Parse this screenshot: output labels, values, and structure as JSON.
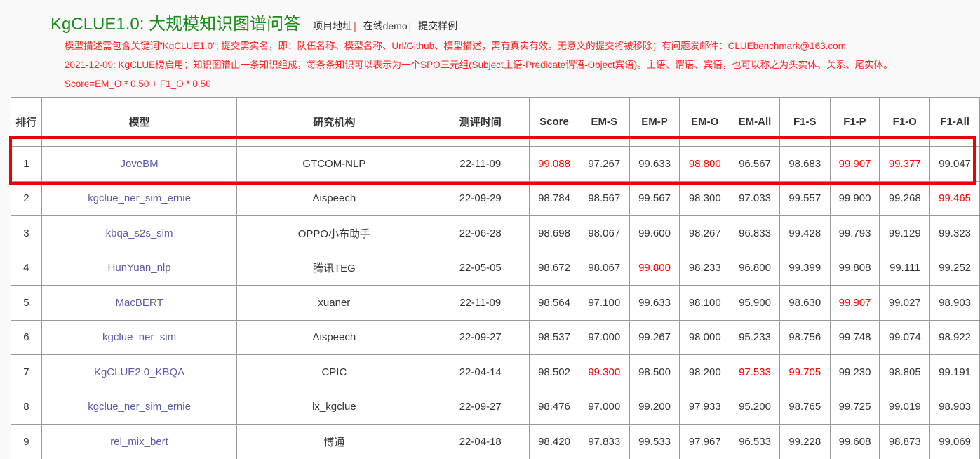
{
  "header": {
    "title": "KgCLUE1.0: 大规模知识图谱问答",
    "links": [
      "项目地址",
      "在线demo",
      "提交样例"
    ]
  },
  "notes": [
    "模型描述需包含关键词\"KgCLUE1.0\"; 提交需实名，即：队伍名称、模型名称、Url/Github、模型描述，需有真实有效。无意义的提交将被移除；有问题发邮件：CLUEbenchmark@163.com",
    "2021-12-09: KgCLUE榜启用；知识图谱由一条知识组成，每条条知识可以表示为一个SPO三元组(Subject主语-Predicate谓语-Object宾语)。主语、谓语、宾语，也可以称之为头实体、关系、尾实体。",
    "Score=EM_O * 0.50 + F1_O * 0.50"
  ],
  "highlight_color": "#ff0000",
  "table": {
    "columns": [
      "排行",
      "模型",
      "研究机构",
      "测评时间",
      "Score",
      "EM-S",
      "EM-P",
      "EM-O",
      "EM-All",
      "F1-S",
      "F1-P",
      "F1-O",
      "F1-All"
    ],
    "rows": [
      {
        "cells": [
          "1",
          "JoveBM",
          "GTCOM-NLP",
          "22-11-09",
          "99.088",
          "97.267",
          "99.633",
          "98.800",
          "96.567",
          "98.683",
          "99.907",
          "99.377",
          "99.047"
        ],
        "highlight": [
          4,
          7,
          10,
          11
        ],
        "selected": true
      },
      {
        "cells": [
          "2",
          "kgclue_ner_sim_ernie",
          "Aispeech",
          "22-09-29",
          "98.784",
          "98.567",
          "99.567",
          "98.300",
          "97.033",
          "99.557",
          "99.900",
          "99.268",
          "99.465"
        ],
        "highlight": [
          12
        ]
      },
      {
        "cells": [
          "3",
          "kbqa_s2s_sim",
          "OPPO小布助手",
          "22-06-28",
          "98.698",
          "98.067",
          "99.600",
          "98.267",
          "96.833",
          "99.428",
          "99.793",
          "99.129",
          "99.323"
        ],
        "highlight": []
      },
      {
        "cells": [
          "4",
          "HunYuan_nlp",
          "腾讯TEG",
          "22-05-05",
          "98.672",
          "98.067",
          "99.800",
          "98.233",
          "96.800",
          "99.399",
          "99.808",
          "99.111",
          "99.252"
        ],
        "highlight": [
          6
        ]
      },
      {
        "cells": [
          "5",
          "MacBERT",
          "xuaner",
          "22-11-09",
          "98.564",
          "97.100",
          "99.633",
          "98.100",
          "95.900",
          "98.630",
          "99.907",
          "99.027",
          "98.903"
        ],
        "highlight": [
          10
        ]
      },
      {
        "cells": [
          "6",
          "kgclue_ner_sim",
          "Aispeech",
          "22-09-27",
          "98.537",
          "97.000",
          "99.267",
          "98.000",
          "95.233",
          "98.756",
          "99.748",
          "99.074",
          "98.922"
        ],
        "highlight": []
      },
      {
        "cells": [
          "7",
          "KgCLUE2.0_KBQA",
          "CPIC",
          "22-04-14",
          "98.502",
          "99.300",
          "98.500",
          "98.200",
          "97.533",
          "99.705",
          "99.230",
          "98.805",
          "99.191"
        ],
        "highlight": [
          5,
          8,
          9
        ]
      },
      {
        "cells": [
          "8",
          "kgclue_ner_sim_ernie",
          "lx_kgclue",
          "22-09-27",
          "98.476",
          "97.000",
          "99.200",
          "97.933",
          "95.200",
          "98.765",
          "99.725",
          "99.019",
          "98.903"
        ],
        "highlight": []
      },
      {
        "cells": [
          "9",
          "rel_mix_bert",
          "博通",
          "22-04-18",
          "98.420",
          "97.833",
          "99.533",
          "97.967",
          "96.533",
          "99.228",
          "99.608",
          "98.873",
          "99.069"
        ],
        "highlight": []
      }
    ]
  }
}
